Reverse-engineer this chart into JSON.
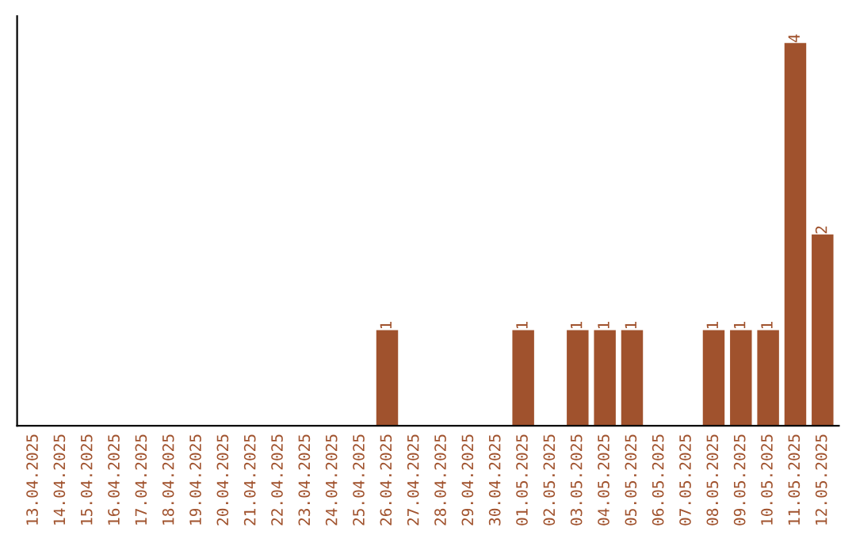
{
  "chart_data": {
    "type": "bar",
    "categories": [
      "13.04.2025",
      "14.04.2025",
      "15.04.2025",
      "16.04.2025",
      "17.04.2025",
      "18.04.2025",
      "19.04.2025",
      "20.04.2025",
      "21.04.2025",
      "22.04.2025",
      "23.04.2025",
      "24.04.2025",
      "25.04.2025",
      "26.04.2025",
      "27.04.2025",
      "28.04.2025",
      "29.04.2025",
      "30.04.2025",
      "01.05.2025",
      "02.05.2025",
      "03.05.2025",
      "04.05.2025",
      "05.05.2025",
      "06.05.2025",
      "07.05.2025",
      "08.05.2025",
      "09.05.2025",
      "10.05.2025",
      "11.05.2025",
      "12.05.2025"
    ],
    "values": [
      null,
      null,
      null,
      null,
      null,
      null,
      null,
      null,
      null,
      null,
      null,
      null,
      null,
      1,
      null,
      null,
      null,
      null,
      1,
      null,
      1,
      1,
      1,
      null,
      null,
      1,
      1,
      1,
      4,
      2
    ],
    "data_labels": true,
    "color": "#a0522d",
    "tick_labels": "x",
    "grid": false,
    "legend": false
  }
}
